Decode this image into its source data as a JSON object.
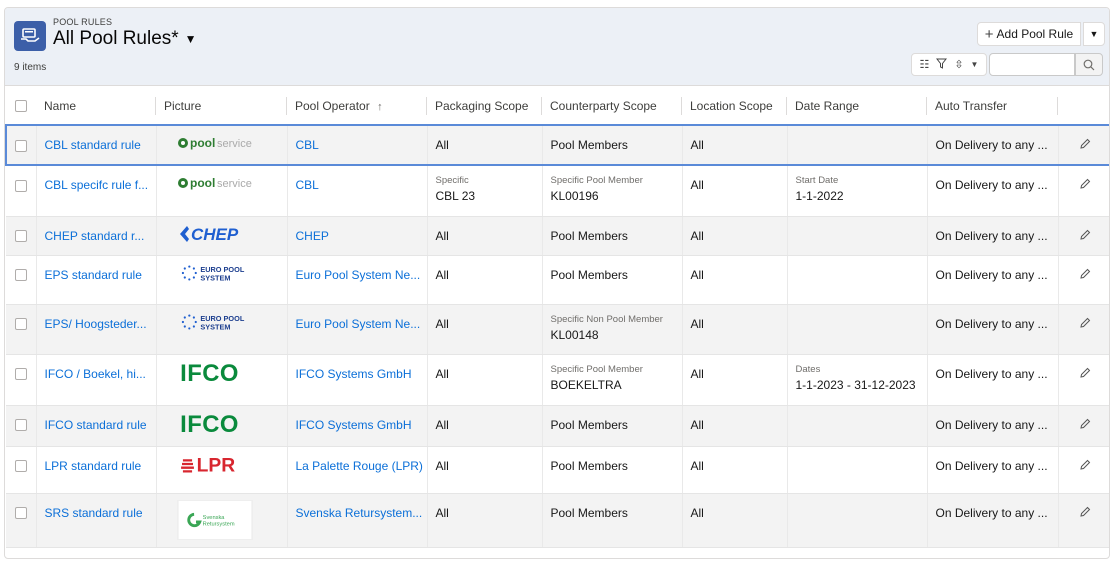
{
  "header": {
    "eyebrow": "POOL RULES",
    "title": "All Pool Rules*",
    "count": "9 items",
    "add_label": "Add Pool Rule",
    "icon": "list-object-icon"
  },
  "columns": [
    "Name",
    "Picture",
    "Pool Operator",
    "Packaging Scope",
    "Counterparty Scope",
    "Location Scope",
    "Date Range",
    "Auto Transfer"
  ],
  "sort_indicator": "↑",
  "rows": [
    {
      "name": "CBL standard rule",
      "logo": "poolservice",
      "operator": "CBL",
      "pack_label": "",
      "pack": "All",
      "cp_label": "",
      "cp": "Pool Members",
      "loc": "All",
      "date_label": "",
      "date": "",
      "auto": "On Delivery to any ..."
    },
    {
      "name": "CBL specifc rule f...",
      "logo": "poolservice",
      "operator": "CBL",
      "pack_label": "Specific",
      "pack": "CBL 23",
      "cp_label": "Specific Pool Member",
      "cp": "KL00196",
      "loc": "All",
      "date_label": "Start Date",
      "date": "1-1-2022",
      "auto": "On Delivery to any ..."
    },
    {
      "name": "CHEP standard r...",
      "logo": "chep",
      "operator": "CHEP",
      "pack_label": "",
      "pack": "All",
      "cp_label": "",
      "cp": "Pool Members",
      "loc": "All",
      "date_label": "",
      "date": "",
      "auto": "On Delivery to any ..."
    },
    {
      "name": "EPS standard rule",
      "logo": "europool",
      "operator": "Euro Pool System Ne...",
      "pack_label": "",
      "pack": "All",
      "cp_label": "",
      "cp": "Pool Members",
      "loc": "All",
      "date_label": "",
      "date": "",
      "auto": "On Delivery to any ..."
    },
    {
      "name": "EPS/ Hoogsteder...",
      "logo": "europool",
      "operator": "Euro Pool System Ne...",
      "pack_label": "",
      "pack": "All",
      "cp_label": "Specific Non Pool Member",
      "cp": "KL00148",
      "loc": "All",
      "date_label": "",
      "date": "",
      "auto": "On Delivery to any ..."
    },
    {
      "name": "IFCO / Boekel, hi...",
      "logo": "ifco",
      "operator": "IFCO Systems GmbH",
      "pack_label": "",
      "pack": "All",
      "cp_label": "Specific Pool Member",
      "cp": "BOEKELTRA",
      "loc": "All",
      "date_label": "Dates",
      "date": "1-1-2023 - 31-12-2023",
      "auto": "On Delivery to any ..."
    },
    {
      "name": "IFCO standard rule",
      "logo": "ifco",
      "operator": "IFCO Systems GmbH",
      "pack_label": "",
      "pack": "All",
      "cp_label": "",
      "cp": "Pool Members",
      "loc": "All",
      "date_label": "",
      "date": "",
      "auto": "On Delivery to any ..."
    },
    {
      "name": "LPR standard rule",
      "logo": "lpr",
      "operator": "La Palette Rouge (LPR)",
      "pack_label": "",
      "pack": "All",
      "cp_label": "",
      "cp": "Pool Members",
      "loc": "All",
      "date_label": "",
      "date": "",
      "auto": "On Delivery to any ..."
    },
    {
      "name": "SRS standard rule",
      "logo": "srs",
      "operator": "Svenska Retursystem...",
      "pack_label": "",
      "pack": "All",
      "cp_label": "",
      "cp": "Pool Members",
      "loc": "All",
      "date_label": "",
      "date": "",
      "auto": "On Delivery to any ..."
    }
  ],
  "logo_text": {
    "poolservice": {
      "a": "pool",
      "b": "service"
    },
    "chep": "CHEP",
    "europool": {
      "a": "EURO POOL",
      "b": "SYSTEM"
    },
    "ifco": "IFCO",
    "lpr": "LPR",
    "srs": {
      "a": "Svenska",
      "b": "Retursystem"
    }
  },
  "colors": {
    "link": "#0b6fd8",
    "header_bg": "#ecf0f6",
    "icon_bg": "#3c5fa8",
    "chep": "#1f5fd0",
    "ifco": "#0a8a3c",
    "lpr": "#d8262f",
    "srs": "#3aa655",
    "selected": "#5a8ad8"
  }
}
